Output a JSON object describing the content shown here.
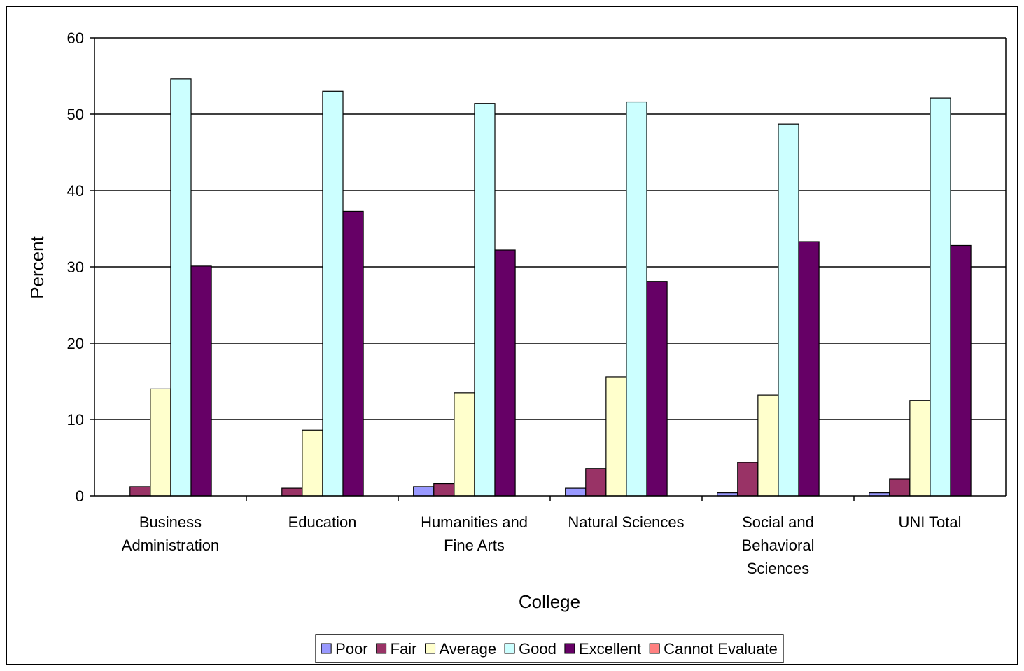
{
  "chart_data": {
    "type": "bar",
    "xlabel": "College",
    "ylabel": "Percent",
    "ylim": [
      0,
      60
    ],
    "yticks": [
      0,
      10,
      20,
      30,
      40,
      50,
      60
    ],
    "grid": true,
    "legend_position": "bottom",
    "categories": [
      [
        "Business",
        "Administration"
      ],
      [
        "Education"
      ],
      [
        "Humanities and",
        "Fine Arts"
      ],
      [
        "Natural Sciences"
      ],
      [
        "Social and",
        "Behavioral",
        "Sciences"
      ],
      [
        "UNI Total"
      ]
    ],
    "series": [
      {
        "name": "Poor",
        "color": "#9999ff",
        "values": [
          0,
          0,
          1.2,
          1.0,
          0.4,
          0.4
        ]
      },
      {
        "name": "Fair",
        "color": "#993366",
        "values": [
          1.2,
          1.0,
          1.6,
          3.6,
          4.4,
          2.2
        ]
      },
      {
        "name": "Average",
        "color": "#ffffcc",
        "values": [
          14.0,
          8.6,
          13.5,
          15.6,
          13.2,
          12.5
        ]
      },
      {
        "name": "Good",
        "color": "#ccffff",
        "values": [
          54.6,
          53.0,
          51.4,
          51.6,
          48.7,
          52.1
        ]
      },
      {
        "name": "Excellent",
        "color": "#660066",
        "values": [
          30.1,
          37.3,
          32.2,
          28.1,
          33.3,
          32.8
        ]
      },
      {
        "name": "Cannot Evaluate",
        "color": "#ff8080",
        "values": [
          0,
          0,
          0,
          0,
          0,
          0
        ]
      }
    ]
  }
}
